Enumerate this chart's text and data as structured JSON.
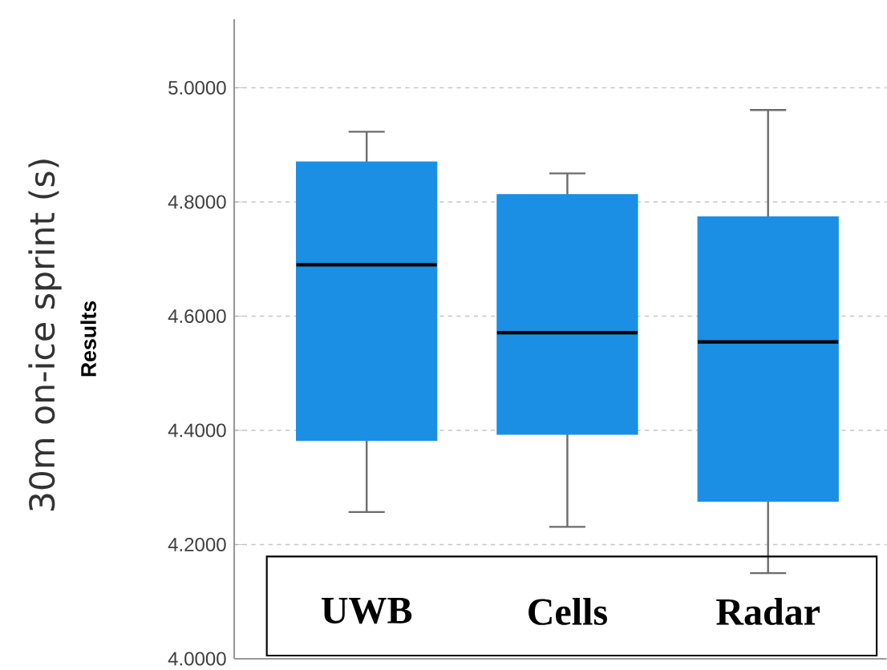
{
  "chart_data": {
    "type": "box",
    "ylabel": "Results",
    "annotations": [
      "30m on-ice sprint (s)"
    ],
    "categories": [
      "UWB",
      "Cells",
      "Radar"
    ],
    "boxes": [
      {
        "low": 4.257,
        "q1": 4.382,
        "median": 4.69,
        "q3": 4.87,
        "high": 4.923
      },
      {
        "low": 4.231,
        "q1": 4.393,
        "median": 4.571,
        "q3": 4.813,
        "high": 4.85
      },
      {
        "low": 4.15,
        "q1": 4.276,
        "median": 4.555,
        "q3": 4.774,
        "high": 4.961
      }
    ],
    "color": "#1a8fe3",
    "ylim": [
      4.0,
      5.12
    ],
    "yticks": [
      {
        "value": 4.0,
        "label": "4.0000"
      },
      {
        "value": 4.2,
        "label": "4.2000"
      },
      {
        "value": 4.4,
        "label": "4.4000"
      },
      {
        "value": 4.6,
        "label": "4.6000"
      },
      {
        "value": 4.8,
        "label": "4.8000"
      },
      {
        "value": 5.0,
        "label": "5.0000"
      }
    ],
    "grid": "y"
  }
}
